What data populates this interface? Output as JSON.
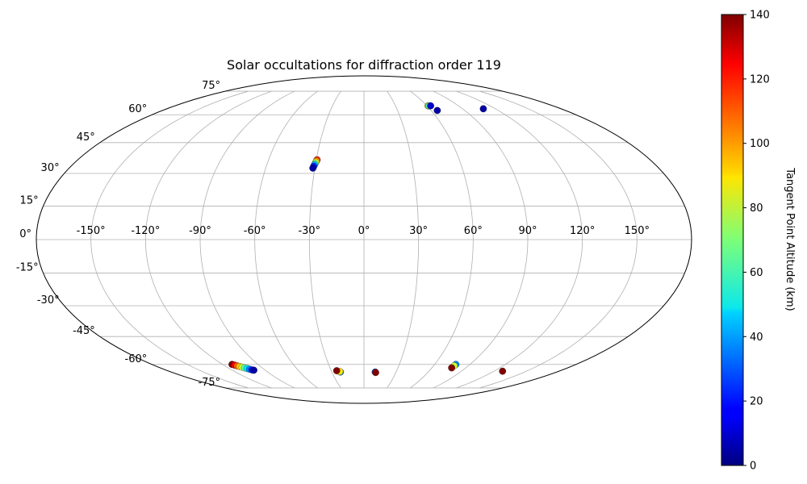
{
  "chart_data": {
    "type": "scatter",
    "projection": "mollweide",
    "title": "Solar occultations for diffraction order 119",
    "grid": true,
    "lon_ticks": [
      {
        "value": -150,
        "label": "-150°"
      },
      {
        "value": -120,
        "label": "-120°"
      },
      {
        "value": -90,
        "label": "-90°"
      },
      {
        "value": -60,
        "label": "-60°"
      },
      {
        "value": -30,
        "label": "-30°"
      },
      {
        "value": 0,
        "label": "0°"
      },
      {
        "value": 30,
        "label": "30°"
      },
      {
        "value": 60,
        "label": "60°"
      },
      {
        "value": 90,
        "label": "90°"
      },
      {
        "value": 120,
        "label": "120°"
      },
      {
        "value": 150,
        "label": "150°"
      }
    ],
    "lat_ticks": [
      {
        "value": 75,
        "label": "75°"
      },
      {
        "value": 60,
        "label": "60°"
      },
      {
        "value": 45,
        "label": "45°"
      },
      {
        "value": 30,
        "label": "30°"
      },
      {
        "value": 15,
        "label": "15°"
      },
      {
        "value": 0,
        "label": "0°"
      },
      {
        "value": -15,
        "label": "-15°"
      },
      {
        "value": -30,
        "label": "-30°"
      },
      {
        "value": -45,
        "label": "-45°"
      },
      {
        "value": -60,
        "label": "-60°"
      },
      {
        "value": -75,
        "label": "-75°"
      }
    ],
    "colorbar": {
      "label": "Tangent Point Altitude (km)",
      "range": [
        0,
        140
      ],
      "colormap": "jet",
      "ticks": [
        {
          "value": 0,
          "label": "0"
        },
        {
          "value": 20,
          "label": "20"
        },
        {
          "value": 40,
          "label": "40"
        },
        {
          "value": 60,
          "label": "60"
        },
        {
          "value": 80,
          "label": "80"
        },
        {
          "value": 100,
          "label": "100"
        },
        {
          "value": 120,
          "label": "120"
        },
        {
          "value": 140,
          "label": "140"
        }
      ]
    },
    "points": [
      {
        "lon": -29.5,
        "lat": 36.5,
        "alt": 120
      },
      {
        "lon": -29.7,
        "lat": 36.0,
        "alt": 105
      },
      {
        "lon": -30.0,
        "lat": 35.3,
        "alt": 85
      },
      {
        "lon": -30.3,
        "lat": 34.6,
        "alt": 60
      },
      {
        "lon": -30.6,
        "lat": 34.0,
        "alt": 40
      },
      {
        "lon": -30.9,
        "lat": 33.3,
        "alt": 20
      },
      {
        "lon": -31.2,
        "lat": 32.5,
        "alt": 5
      },
      {
        "lon": 61.0,
        "lat": 65.3,
        "alt": 100
      },
      {
        "lon": 62.0,
        "lat": 65.3,
        "alt": 60
      },
      {
        "lon": 63.5,
        "lat": 65.3,
        "alt": 10
      },
      {
        "lon": 65.5,
        "lat": 62.5,
        "alt": 5
      },
      {
        "lon": 109.0,
        "lat": 63.5,
        "alt": 5
      },
      {
        "lon": -112.0,
        "lat": -60.0,
        "alt": 140
      },
      {
        "lon": -110.7,
        "lat": -60.4,
        "alt": 125
      },
      {
        "lon": -109.4,
        "lat": -60.8,
        "alt": 110
      },
      {
        "lon": -108.1,
        "lat": -61.2,
        "alt": 95
      },
      {
        "lon": -106.8,
        "lat": -61.6,
        "alt": 80
      },
      {
        "lon": -105.5,
        "lat": -62.0,
        "alt": 65
      },
      {
        "lon": -104.2,
        "lat": -62.4,
        "alt": 50
      },
      {
        "lon": -102.9,
        "lat": -62.8,
        "alt": 35
      },
      {
        "lon": -101.6,
        "lat": -63.2,
        "alt": 20
      },
      {
        "lon": -100.3,
        "lat": -63.4,
        "alt": 5
      },
      {
        "lon": -22.0,
        "lat": -64.5,
        "alt": 35
      },
      {
        "lon": -22.5,
        "lat": -64.2,
        "alt": 90
      },
      {
        "lon": -25.0,
        "lat": -63.7,
        "alt": 140
      },
      {
        "lon": 10.5,
        "lat": -64.5,
        "alt": 30
      },
      {
        "lon": 11.0,
        "lat": -64.8,
        "alt": 140
      },
      {
        "lon": 78.0,
        "lat": -60.0,
        "alt": 35
      },
      {
        "lon": 77.8,
        "lat": -60.8,
        "alt": 80
      },
      {
        "lon": 77.5,
        "lat": -62.0,
        "alt": 140
      },
      {
        "lon": 128.0,
        "lat": -64.0,
        "alt": 140
      }
    ]
  }
}
